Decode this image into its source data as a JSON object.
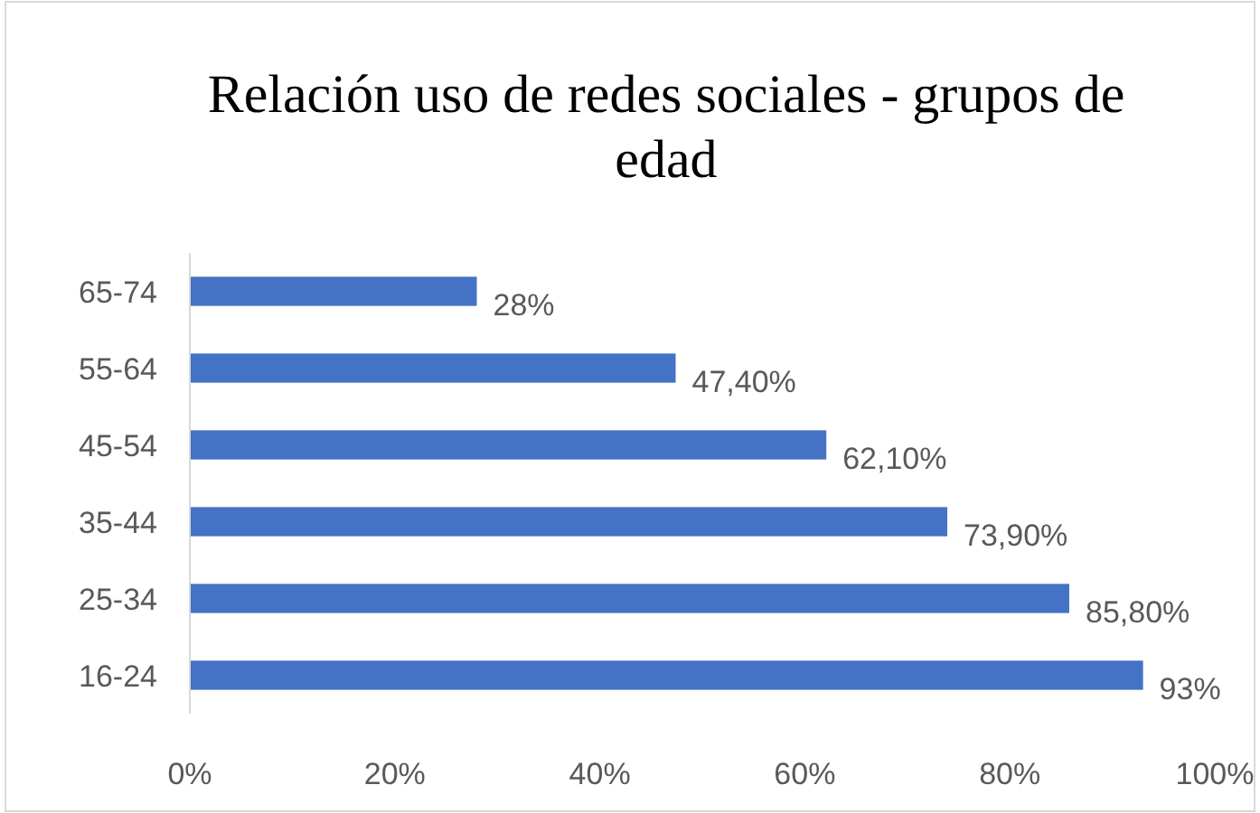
{
  "chart_data": {
    "type": "bar",
    "orientation": "horizontal",
    "title": "Relación uso de redes sociales - grupos de edad",
    "categories": [
      "65-74",
      "55-64",
      "45-54",
      "35-44",
      "25-34",
      "16-24"
    ],
    "values": [
      28,
      47.4,
      62.1,
      73.9,
      85.8,
      93
    ],
    "value_labels": [
      "28%",
      "47,40%",
      "62,10%",
      "73,90%",
      "85,80%",
      "93%"
    ],
    "color": "#4472c4",
    "xlim": [
      0,
      100
    ],
    "xticks": [
      {
        "value": 0,
        "label": "0%"
      },
      {
        "value": 20,
        "label": "20%"
      },
      {
        "value": 40,
        "label": "40%"
      },
      {
        "value": 60,
        "label": "60%"
      },
      {
        "value": 80,
        "label": "80%"
      },
      {
        "value": 100,
        "label": "100%"
      }
    ],
    "grid": false
  }
}
